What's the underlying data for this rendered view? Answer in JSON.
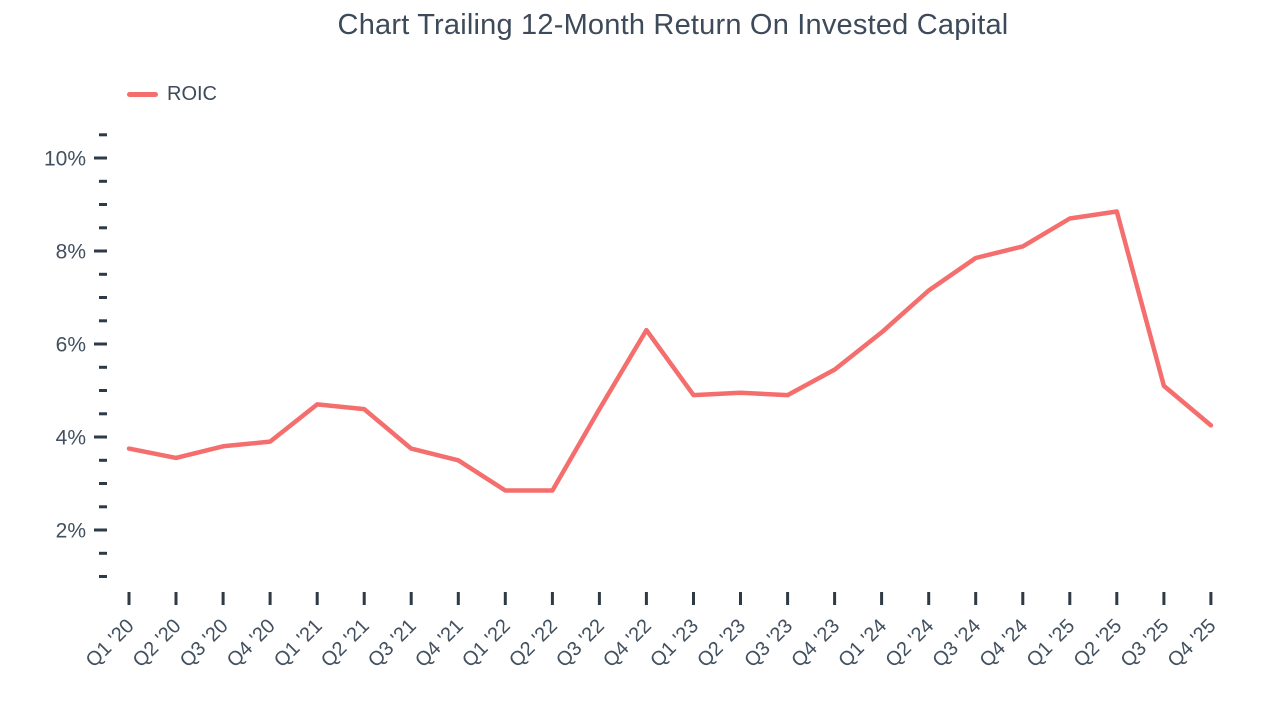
{
  "title": "Chart Trailing 12-Month Return On Invested Capital",
  "legend": {
    "items": [
      {
        "label": "ROIC",
        "color": "#f56e6e"
      }
    ]
  },
  "chart_data": {
    "type": "line",
    "title": "Chart Trailing 12-Month Return On Invested Capital",
    "categories": [
      "Q1 '20",
      "Q2 '20",
      "Q3 '20",
      "Q4 '20",
      "Q1 '21",
      "Q2 '21",
      "Q3 '21",
      "Q4 '21",
      "Q1 '22",
      "Q2 '22",
      "Q3 '22",
      "Q4 '22",
      "Q1 '23",
      "Q2 '23",
      "Q3 '23",
      "Q4 '23",
      "Q1 '24",
      "Q2 '24",
      "Q3 '24",
      "Q4 '24",
      "Q1 '25",
      "Q2 '25",
      "Q3 '25",
      "Q4 '25"
    ],
    "series": [
      {
        "name": "ROIC",
        "color": "#f56e6e",
        "values": [
          3.75,
          3.55,
          3.8,
          3.9,
          4.7,
          4.6,
          3.75,
          3.5,
          2.85,
          2.85,
          4.6,
          6.3,
          4.9,
          4.95,
          4.9,
          5.45,
          6.25,
          7.15,
          7.85,
          8.1,
          8.7,
          8.85,
          5.1,
          4.25
        ]
      }
    ],
    "xlabel": "",
    "ylabel": "",
    "y_axis": {
      "min": 1.0,
      "max": 10.5,
      "minor_tick_step": 0.5,
      "labeled_ticks": [
        {
          "value": 2,
          "label": "2%"
        },
        {
          "value": 4,
          "label": "4%"
        },
        {
          "value": 6,
          "label": "6%"
        },
        {
          "value": 8,
          "label": "8%"
        },
        {
          "value": 10,
          "label": "10%"
        }
      ]
    },
    "x_axis": {
      "tick_angle": -45
    },
    "grid": false,
    "legend_position": "top-left",
    "background": "#ffffff",
    "axis": {
      "tick_color": "#2e3a46",
      "label_color": "#42505f"
    }
  }
}
